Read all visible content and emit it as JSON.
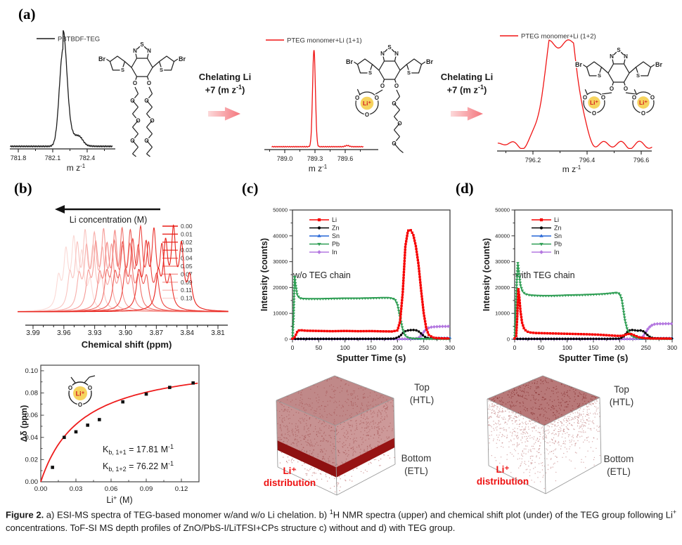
{
  "panel_labels": {
    "a": "(a)",
    "b": "(b)",
    "c": "(c)",
    "d": "(d)"
  },
  "atoms": {
    "br": "Br",
    "s": "S",
    "n": "N",
    "o": "O",
    "li": "Li⁺"
  },
  "arrow_block": {
    "line1": "Chelating Li",
    "line2_pre": "+7 (m z",
    "line2_sup": "-1",
    "line2_close": ")"
  },
  "mz_axis": {
    "pre": "m z",
    "sup": "-1"
  },
  "cube_labels": {
    "top1": "Top",
    "top2": "(HTL)",
    "bottom1": "Bottom",
    "bottom2": "(ETL)",
    "li1": "Li⁺",
    "li2": "distribution"
  },
  "caption": {
    "fig": "Figure 2.",
    "part1": " a) ESI-MS spectra of TEG-based monomer w/and w/o Li chelation. b) ",
    "sup1": "1",
    "part2": "H NMR spectra (upper) and chemical shift plot (under) of the TEG group following Li",
    "sup2": "+",
    "part3": " concentrations. ToF-SI MS depth profiles of ZnO/PbS-I/LiTFSI+CPs structure c) without and d) with TEG group."
  },
  "chart_data": [
    {
      "id": "ms-a1",
      "type": "line",
      "legend": "PBTBDF-TEG",
      "color": "#1c1c1c",
      "tick_labels": [
        "781.8",
        "782.1",
        "782.4"
      ],
      "tick_values": [
        781.8,
        782.1,
        782.4
      ],
      "peak_mz": 782.19,
      "peak_sigma": 0.032,
      "profile": "tail-bump"
    },
    {
      "id": "ms-a2",
      "type": "line",
      "legend": "PTEG monomer+Li (1+1)",
      "color": "#f01414",
      "tick_labels": [
        "789.0",
        "789.3",
        "789.6"
      ],
      "tick_values": [
        789.0,
        789.3,
        789.6
      ],
      "peak_mz": 789.29,
      "peak_sigma": 0.014,
      "profile": "narrow"
    },
    {
      "id": "ms-a3",
      "type": "line",
      "legend": "PTEG monomer+Li (1+2)",
      "color": "#f01414",
      "tick_labels": [
        "796.2",
        "796.4",
        "796.6"
      ],
      "tick_values": [
        796.2,
        796.4,
        796.6
      ],
      "peak_mz": 796.3,
      "peak_sigma": 0.05,
      "profile": "broad-wiggly"
    },
    {
      "id": "nmr",
      "type": "line",
      "legend_title": "Li concentration (M)",
      "xlabel": "Chemical shift (ppm)",
      "x_tick_labels": [
        "3.99",
        "3.96",
        "3.93",
        "3.90",
        "3.87",
        "3.84",
        "3.81"
      ],
      "color_start": "#e81d17",
      "color_end": "#fbd9d5",
      "series": [
        {
          "label": "0.00",
          "center_ppm": 3.853
        },
        {
          "label": "0.01",
          "center_ppm": 3.872
        },
        {
          "label": "0.02",
          "center_ppm": 3.885
        },
        {
          "label": "0.03",
          "center_ppm": 3.895
        },
        {
          "label": "0.04",
          "center_ppm": 3.903
        },
        {
          "label": "0.05",
          "center_ppm": 3.91
        },
        {
          "label": "0.07",
          "center_ppm": 3.921
        },
        {
          "label": "0.09",
          "center_ppm": 3.93
        },
        {
          "label": "0.11",
          "center_ppm": 3.939
        },
        {
          "label": "0.13",
          "center_ppm": 3.95
        }
      ]
    },
    {
      "id": "binding",
      "type": "scatter",
      "xlabel_parts": {
        "pre": "Li",
        "sup": "+",
        "post": " (M)"
      },
      "ylabel": "Δδ (ppm)",
      "x_tick_labels": [
        "0.00",
        "0.03",
        "0.06",
        "0.09",
        "0.12"
      ],
      "y_tick_labels": [
        "0.00",
        "0.02",
        "0.04",
        "0.06",
        "0.08",
        "0.10"
      ],
      "points_x": [
        0.01,
        0.02,
        0.03,
        0.04,
        0.05,
        0.07,
        0.09,
        0.11,
        0.13
      ],
      "points_y": [
        0.013,
        0.04,
        0.045,
        0.051,
        0.056,
        0.072,
        0.079,
        0.085,
        0.089
      ],
      "fit": {
        "dmax": 0.112,
        "k": 0.035
      },
      "fit_color": "#ee1c1c",
      "annotations": [
        {
          "pre": "K",
          "sub": "b, 1+1",
          "mid": " = 17.81 M",
          "sup": "-1"
        },
        {
          "pre": "K",
          "sub": "b, 1+2",
          "mid": " = 76.22 M",
          "sup": "-1"
        }
      ]
    },
    {
      "id": "tof-wo",
      "type": "line",
      "annotation": "w/o TEG chain",
      "xlabel": "Sputter Time (s)",
      "ylabel": "Intensity (counts)",
      "xlim": [
        0,
        300
      ],
      "ylim": [
        0,
        50000
      ],
      "x_tick_labels": [
        "0",
        "50",
        "100",
        "150",
        "200",
        "250",
        "300"
      ],
      "y_tick_labels": [
        "0",
        "10000",
        "20000",
        "30000",
        "40000",
        "50000"
      ],
      "series": [
        {
          "name": "Li",
          "color": "#f60000",
          "marker": "square",
          "points": [
            [
              0,
              200
            ],
            [
              3,
              400
            ],
            [
              6,
              1500
            ],
            [
              10,
              3300
            ],
            [
              15,
              3500
            ],
            [
              25,
              3300
            ],
            [
              50,
              3200
            ],
            [
              75,
              3100
            ],
            [
              100,
              3200
            ],
            [
              125,
              3100
            ],
            [
              150,
              3150
            ],
            [
              170,
              3050
            ],
            [
              190,
              3000
            ],
            [
              200,
              3400
            ],
            [
              205,
              7000
            ],
            [
              210,
              18000
            ],
            [
              215,
              36000
            ],
            [
              220,
              42000
            ],
            [
              225,
              42300
            ],
            [
              230,
              40500
            ],
            [
              235,
              36000
            ],
            [
              240,
              29000
            ],
            [
              245,
              19000
            ],
            [
              250,
              10000
            ],
            [
              255,
              4000
            ],
            [
              260,
              1500
            ],
            [
              270,
              500
            ],
            [
              285,
              350
            ],
            [
              300,
              300
            ]
          ]
        },
        {
          "name": "Zn",
          "color": "#000000",
          "marker": "circle",
          "points": [
            [
              0,
              150
            ],
            [
              60,
              150
            ],
            [
              120,
              150
            ],
            [
              180,
              180
            ],
            [
              195,
              250
            ],
            [
              205,
              1200
            ],
            [
              210,
              2400
            ],
            [
              215,
              3100
            ],
            [
              220,
              3400
            ],
            [
              228,
              3600
            ],
            [
              235,
              3500
            ],
            [
              240,
              3100
            ],
            [
              245,
              2200
            ],
            [
              250,
              1200
            ],
            [
              255,
              600
            ],
            [
              262,
              350
            ],
            [
              275,
              260
            ],
            [
              300,
              250
            ]
          ]
        },
        {
          "name": "Sn",
          "color": "#2465d6",
          "marker": "triangle-up",
          "points": [
            [
              0,
              100
            ],
            [
              60,
              100
            ],
            [
              120,
              100
            ],
            [
              180,
              100
            ],
            [
              230,
              110
            ],
            [
              245,
              200
            ],
            [
              255,
              330
            ],
            [
              265,
              450
            ],
            [
              280,
              500
            ],
            [
              300,
              520
            ]
          ]
        },
        {
          "name": "Pb",
          "color": "#2f9e54",
          "marker": "triangle-down",
          "points": [
            [
              0,
              150
            ],
            [
              2,
              8000
            ],
            [
              4,
              24500
            ],
            [
              6,
              21000
            ],
            [
              9,
              17200
            ],
            [
              13,
              16000
            ],
            [
              18,
              15700
            ],
            [
              30,
              15600
            ],
            [
              50,
              15600
            ],
            [
              75,
              15700
            ],
            [
              100,
              15800
            ],
            [
              125,
              15800
            ],
            [
              150,
              15900
            ],
            [
              170,
              16000
            ],
            [
              185,
              16000
            ],
            [
              195,
              15500
            ],
            [
              200,
              13500
            ],
            [
              205,
              8500
            ],
            [
              210,
              3800
            ],
            [
              215,
              1400
            ],
            [
              220,
              600
            ],
            [
              230,
              250
            ],
            [
              250,
              150
            ],
            [
              300,
              120
            ]
          ]
        },
        {
          "name": "In",
          "color": "#b478e0",
          "marker": "diamond",
          "points": [
            [
              0,
              120
            ],
            [
              60,
              120
            ],
            [
              120,
              120
            ],
            [
              180,
              120
            ],
            [
              220,
              130
            ],
            [
              235,
              250
            ],
            [
              242,
              700
            ],
            [
              248,
              2200
            ],
            [
              253,
              3600
            ],
            [
              258,
              4300
            ],
            [
              265,
              4700
            ],
            [
              272,
              4850
            ],
            [
              285,
              4950
            ],
            [
              300,
              5000
            ]
          ]
        }
      ]
    },
    {
      "id": "tof-with",
      "type": "line",
      "annotation": "with TEG chain",
      "xlabel": "Sputter Time (s)",
      "ylabel": "Intensity (counts)",
      "xlim": [
        0,
        300
      ],
      "ylim": [
        0,
        50000
      ],
      "x_tick_labels": [
        "0",
        "50",
        "100",
        "150",
        "200",
        "250",
        "300"
      ],
      "y_tick_labels": [
        "0",
        "10000",
        "20000",
        "30000",
        "40000",
        "50000"
      ],
      "series": [
        {
          "name": "Li",
          "color": "#f60000",
          "marker": "square",
          "points": [
            [
              0,
              300
            ],
            [
              3,
              1200
            ],
            [
              5,
              9000
            ],
            [
              7,
              19500
            ],
            [
              9,
              16000
            ],
            [
              11,
              11000
            ],
            [
              14,
              6500
            ],
            [
              18,
              4000
            ],
            [
              23,
              3000
            ],
            [
              30,
              2600
            ],
            [
              40,
              2400
            ],
            [
              60,
              2300
            ],
            [
              80,
              2200
            ],
            [
              100,
              2100
            ],
            [
              120,
              2000
            ],
            [
              140,
              1900
            ],
            [
              160,
              1750
            ],
            [
              180,
              1500
            ],
            [
              195,
              1300
            ],
            [
              205,
              1300
            ],
            [
              212,
              1800
            ],
            [
              218,
              2100
            ],
            [
              224,
              1900
            ],
            [
              230,
              1300
            ],
            [
              238,
              700
            ],
            [
              248,
              400
            ],
            [
              260,
              300
            ],
            [
              280,
              280
            ],
            [
              300,
              260
            ]
          ]
        },
        {
          "name": "Zn",
          "color": "#000000",
          "marker": "circle",
          "points": [
            [
              0,
              150
            ],
            [
              60,
              150
            ],
            [
              120,
              150
            ],
            [
              180,
              160
            ],
            [
              200,
              250
            ],
            [
              207,
              900
            ],
            [
              212,
              2200
            ],
            [
              217,
              3300
            ],
            [
              222,
              3600
            ],
            [
              228,
              3500
            ],
            [
              234,
              3300
            ],
            [
              240,
              3400
            ],
            [
              246,
              3000
            ],
            [
              252,
              1800
            ],
            [
              258,
              800
            ],
            [
              265,
              400
            ],
            [
              280,
              280
            ],
            [
              300,
              260
            ]
          ]
        },
        {
          "name": "Sn",
          "color": "#2465d6",
          "marker": "triangle-up",
          "points": [
            [
              0,
              100
            ],
            [
              80,
              100
            ],
            [
              160,
              100
            ],
            [
              230,
              110
            ],
            [
              245,
              150
            ],
            [
              258,
              300
            ],
            [
              270,
              400
            ],
            [
              285,
              430
            ],
            [
              300,
              450
            ]
          ]
        },
        {
          "name": "Pb",
          "color": "#2f9e54",
          "marker": "triangle-down",
          "points": [
            [
              0,
              200
            ],
            [
              2,
              10000
            ],
            [
              4,
              22000
            ],
            [
              6,
              29500
            ],
            [
              8,
              26000
            ],
            [
              11,
              21000
            ],
            [
              15,
              18500
            ],
            [
              20,
              17500
            ],
            [
              30,
              17000
            ],
            [
              50,
              16800
            ],
            [
              75,
              16800
            ],
            [
              100,
              17000
            ],
            [
              125,
              17100
            ],
            [
              150,
              17300
            ],
            [
              170,
              17500
            ],
            [
              185,
              17800
            ],
            [
              195,
              18000
            ],
            [
              200,
              17600
            ],
            [
              204,
              15500
            ],
            [
              207,
              11500
            ],
            [
              210,
              7500
            ],
            [
              214,
              4200
            ],
            [
              218,
              2400
            ],
            [
              223,
              1300
            ],
            [
              230,
              600
            ],
            [
              240,
              300
            ],
            [
              260,
              180
            ],
            [
              300,
              150
            ]
          ]
        },
        {
          "name": "In",
          "color": "#b478e0",
          "marker": "diamond",
          "points": [
            [
              0,
              120
            ],
            [
              60,
              120
            ],
            [
              120,
              120
            ],
            [
              180,
              120
            ],
            [
              225,
              140
            ],
            [
              238,
              250
            ],
            [
              245,
              1200
            ],
            [
              250,
              2800
            ],
            [
              255,
              4300
            ],
            [
              260,
              5300
            ],
            [
              266,
              5800
            ],
            [
              272,
              5950
            ],
            [
              285,
              6000
            ],
            [
              300,
              6000
            ]
          ]
        }
      ]
    }
  ]
}
